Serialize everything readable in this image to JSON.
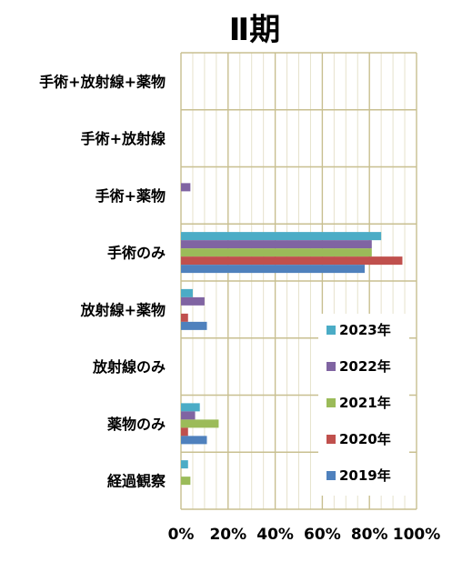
{
  "chart_data": {
    "type": "bar",
    "orientation": "horizontal",
    "title": "Ⅱ期",
    "categories": [
      "手術+放射線+薬物",
      "手術+放射線",
      "手術+薬物",
      "手術のみ",
      "放射線+薬物",
      "放射線のみ",
      "薬物のみ",
      "経過観察"
    ],
    "series": [
      {
        "name": "2023年",
        "color": "#4bacc6",
        "values": [
          0,
          0,
          0,
          85,
          5,
          0,
          8,
          3
        ]
      },
      {
        "name": "2022年",
        "color": "#8064a2",
        "values": [
          0,
          0,
          4,
          81,
          10,
          0,
          6,
          0
        ]
      },
      {
        "name": "2021年",
        "color": "#9bbb59",
        "values": [
          0,
          0,
          0,
          81,
          0,
          0,
          16,
          4
        ]
      },
      {
        "name": "2020年",
        "color": "#c0504d",
        "values": [
          0,
          0,
          0,
          94,
          3,
          0,
          3,
          0
        ]
      },
      {
        "name": "2019年",
        "color": "#4f81bd",
        "values": [
          0,
          0,
          0,
          78,
          11,
          0,
          11,
          0
        ]
      }
    ],
    "xlim": [
      0,
      100
    ],
    "xticks": [
      "0%",
      "20%",
      "40%",
      "60%",
      "80%",
      "100%"
    ],
    "grid": true,
    "legend": "bottom-right"
  }
}
